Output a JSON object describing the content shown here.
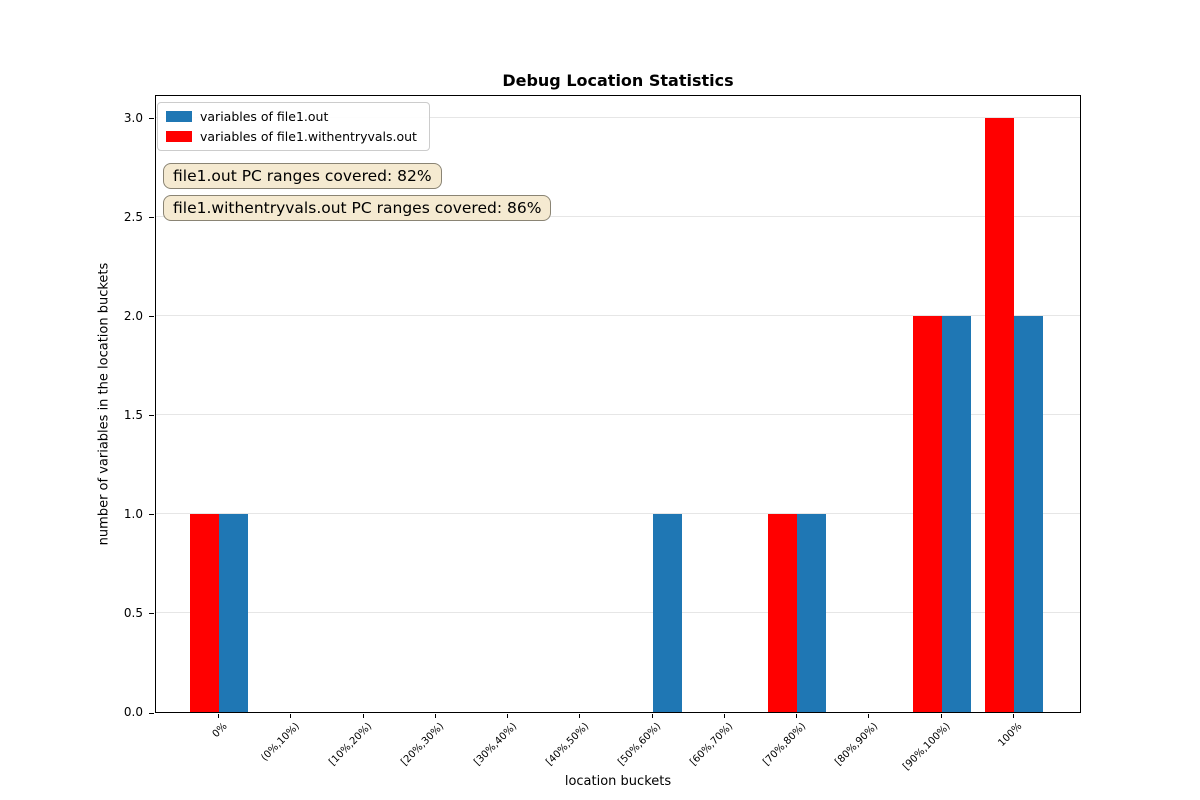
{
  "chart_data": {
    "type": "bar",
    "title": "Debug Location Statistics",
    "xlabel": "location buckets",
    "ylabel": "number of variables in the location buckets",
    "categories": [
      "0%",
      "(0%,10%)",
      "[10%,20%)",
      "[20%,30%)",
      "[30%,40%)",
      "[40%,50%)",
      "[50%,60%)",
      "[60%,70%)",
      "[70%,80%)",
      "[80%,90%)",
      "[90%,100%)",
      "100%"
    ],
    "series": [
      {
        "name": "variables of file1.out",
        "color": "#1f77b4",
        "bar_side": "right",
        "values": [
          1,
          0,
          0,
          0,
          0,
          0,
          1,
          0,
          1,
          0,
          2,
          2
        ]
      },
      {
        "name": "variables of file1.withentryvals.out",
        "color": "#ff0000",
        "bar_side": "left",
        "values": [
          1,
          0,
          0,
          0,
          0,
          0,
          0,
          0,
          1,
          0,
          2,
          3
        ]
      }
    ],
    "yticks": [
      0.0,
      0.5,
      1.0,
      1.5,
      2.0,
      2.5,
      3.0
    ],
    "ylim": [
      0,
      3.12
    ],
    "bar_width_units": 0.4,
    "grid": "horizontal-only",
    "grid_color": "#e6e6e6",
    "legend_position": "upper-left",
    "annotations": [
      "file1.out PC ranges covered: 82%",
      "file1.withentryvals.out PC ranges covered: 86%"
    ],
    "annotation_style": {
      "bg": "#f5ead1",
      "border": "#8a8474"
    }
  }
}
